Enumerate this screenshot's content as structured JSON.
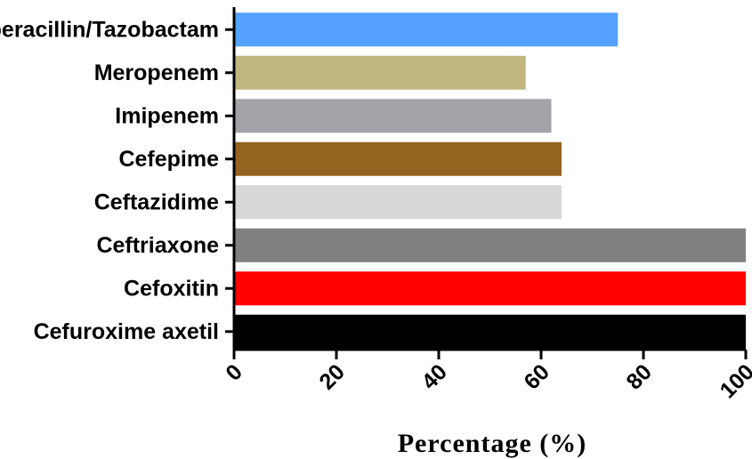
{
  "chart_data": {
    "type": "bar",
    "orientation": "horizontal",
    "categories": [
      "Piperacillin/Tazobactam",
      "Meropenem",
      "Imipenem",
      "Cefepime",
      "Ceftazidime",
      "Ceftriaxone",
      "Cefoxitin",
      "Cefuroxime axetil"
    ],
    "values": [
      75,
      57,
      62,
      64,
      64,
      100,
      100,
      100
    ],
    "colors": [
      "#55a1ff",
      "#c1b67d",
      "#a3a3a8",
      "#93631f",
      "#d7d7d7",
      "#808080",
      "#ff0000",
      "#000000"
    ],
    "xlabel": "Percentage (%)",
    "ylabel": "",
    "title": "",
    "xlim": [
      0,
      100
    ],
    "xticks": [
      0,
      20,
      40,
      60,
      80,
      100
    ],
    "grid": false,
    "legend": "none"
  }
}
